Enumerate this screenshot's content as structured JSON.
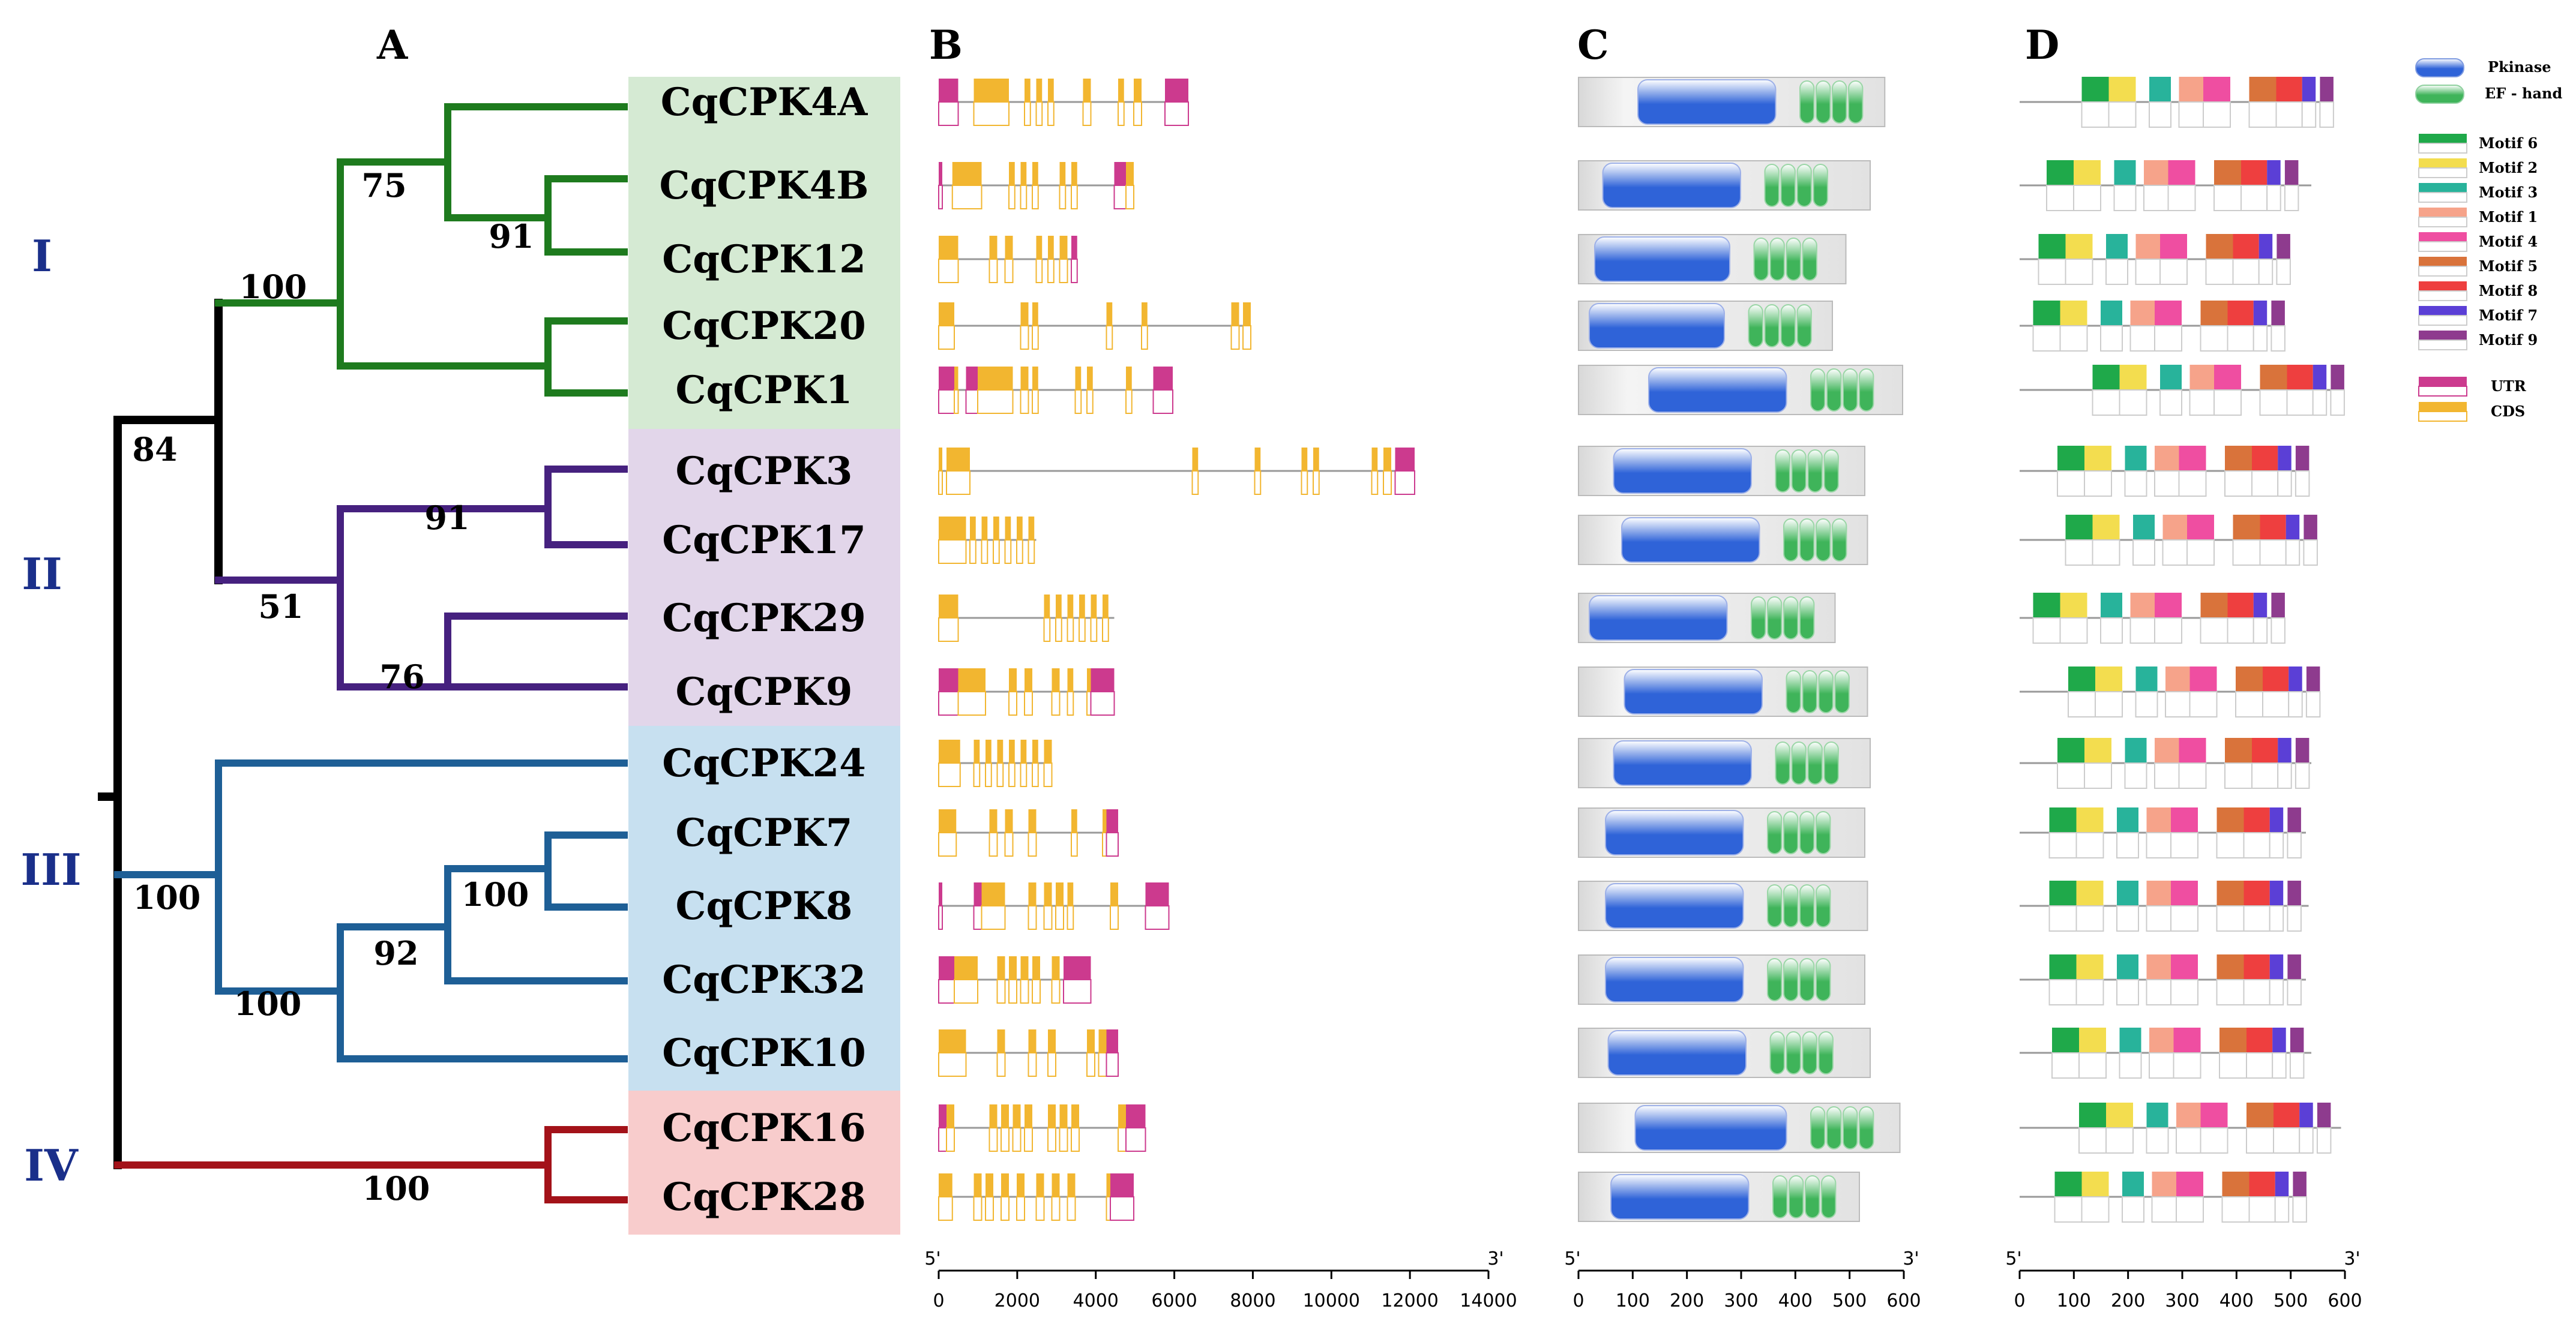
{
  "panels": {
    "a": "A",
    "b": "B",
    "c": "C",
    "d": "D"
  },
  "colors": {
    "group_I": "#1e7b1e",
    "group_II": "#46217f",
    "group_III": "#1e5f96",
    "group_IV": "#a31219",
    "bg_I": "#d5ead3",
    "bg_II": "#e2d6ea",
    "bg_III": "#c7e0f0",
    "bg_IV": "#f8cccc",
    "pkinase": "#3f6ed8",
    "efhand": "#3fb45a",
    "utr": "#cc3a8e",
    "cds": "#f2b630"
  },
  "groups": [
    {
      "label": "I",
      "color": "#1e7b1e",
      "bg": "#d5ead3"
    },
    {
      "label": "II",
      "color": "#46217f",
      "bg": "#e2d6ea"
    },
    {
      "label": "III",
      "color": "#1e5f96",
      "bg": "#c7e0f0"
    },
    {
      "label": "IV",
      "color": "#a31219",
      "bg": "#f8cccc"
    }
  ],
  "genes": [
    {
      "name": "CqCPK4A",
      "group": 0
    },
    {
      "name": "CqCPK4B",
      "group": 0
    },
    {
      "name": "CqCPK12",
      "group": 0
    },
    {
      "name": "CqCPK20",
      "group": 0
    },
    {
      "name": "CqCPK1",
      "group": 0
    },
    {
      "name": "CqCPK3",
      "group": 1
    },
    {
      "name": "CqCPK17",
      "group": 1
    },
    {
      "name": "CqCPK29",
      "group": 1
    },
    {
      "name": "CqCPK9",
      "group": 1
    },
    {
      "name": "CqCPK24",
      "group": 2
    },
    {
      "name": "CqCPK7",
      "group": 2
    },
    {
      "name": "CqCPK8",
      "group": 2
    },
    {
      "name": "CqCPK32",
      "group": 2
    },
    {
      "name": "CqCPK10",
      "group": 2
    },
    {
      "name": "CqCPK16",
      "group": 3
    },
    {
      "name": "CqCPK28",
      "group": 3
    }
  ],
  "bootstrap": [
    "75",
    "91",
    "100",
    "91",
    "51",
    "76",
    "84",
    "100",
    "100",
    "92",
    "100",
    "100"
  ],
  "legend_domains": [
    "Pkinase",
    "EF - hand"
  ],
  "legend_motifs": [
    {
      "label": "Motif 6",
      "color": "#1fa94a"
    },
    {
      "label": "Motif 2",
      "color": "#f3dd4f"
    },
    {
      "label": "Motif 3",
      "color": "#28b39b"
    },
    {
      "label": "Motif 1",
      "color": "#f6a38a"
    },
    {
      "label": "Motif 4",
      "color": "#ef4ea1"
    },
    {
      "label": "Motif 5",
      "color": "#d9733b"
    },
    {
      "label": "Motif 8",
      "color": "#ee3f3f"
    },
    {
      "label": "Motif 7",
      "color": "#5b3fd6"
    },
    {
      "label": "Motif 9",
      "color": "#8e3b8e"
    }
  ],
  "legend_structure": [
    {
      "label": "UTR",
      "color": "#cc3a8e"
    },
    {
      "label": "CDS",
      "color": "#f2b630"
    }
  ],
  "axis_b": {
    "end5": "5'",
    "end3": "3'",
    "ticks": [
      "0",
      "2000",
      "4000",
      "6000",
      "8000",
      "10000",
      "12000",
      "14000"
    ]
  },
  "axis_c": {
    "end5": "5'",
    "end3": "3'",
    "ticks": [
      "0",
      "100",
      "200",
      "300",
      "400",
      "500",
      "600"
    ]
  },
  "axis_d": {
    "end5": "5'",
    "end3": "3'",
    "ticks": [
      "0",
      "100",
      "200",
      "300",
      "400",
      "500",
      "600"
    ]
  },
  "chart_data": {
    "type": "diagram",
    "gene_length_bp": [
      6400,
      5000,
      3500,
      8000,
      6000,
      12200,
      2500,
      4500,
      4500,
      2900,
      4600,
      5900,
      3900,
      4600,
      5300,
      5000
    ],
    "protein_length_aa": [
      567,
      540,
      495,
      470,
      600,
      530,
      535,
      475,
      535,
      540,
      530,
      535,
      530,
      540,
      595,
      520
    ]
  }
}
